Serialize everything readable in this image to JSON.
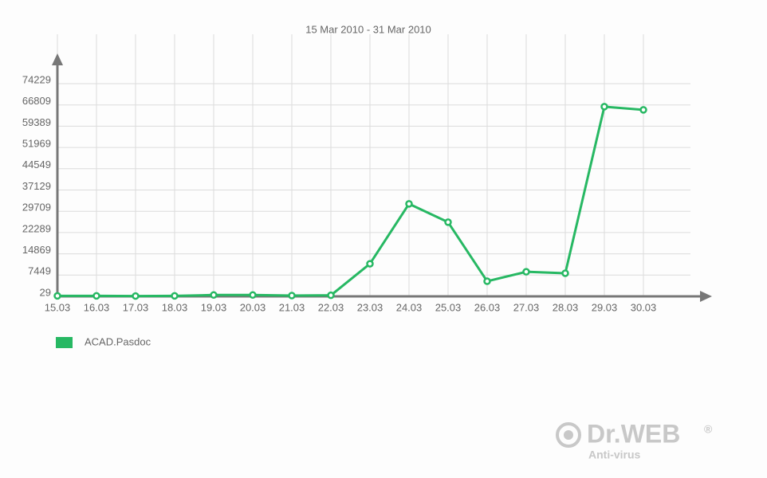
{
  "chart_data": {
    "type": "line",
    "title": "15 Mar 2010 - 31 Mar 2010",
    "categories": [
      "15.03",
      "16.03",
      "17.03",
      "18.03",
      "19.03",
      "20.03",
      "21.03",
      "22.03",
      "23.03",
      "24.03",
      "25.03",
      "26.03",
      "27.03",
      "28.03",
      "29.03",
      "30.03"
    ],
    "series": [
      {
        "name": "ACAD.Pasdoc",
        "color": "#27b863",
        "values": [
          200,
          200,
          150,
          200,
          500,
          500,
          300,
          400,
          11400,
          32300,
          25900,
          5300,
          8600,
          8100,
          66200,
          65100
        ]
      }
    ],
    "ylim": [
      29,
      74229
    ],
    "yticks": [
      29,
      7449,
      14869,
      22289,
      29709,
      37129,
      44549,
      51969,
      59389,
      66809,
      74229
    ],
    "grid": true
  },
  "logo": {
    "name": "Dr.WEB",
    "mark": "®",
    "tagline": "Anti-virus"
  }
}
